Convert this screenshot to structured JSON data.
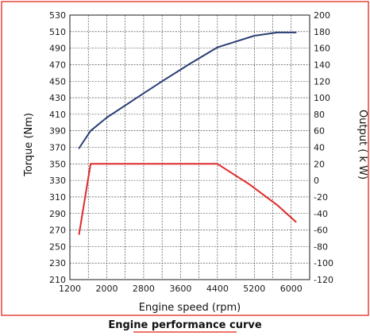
{
  "caption": "Engine performance curve",
  "colors": {
    "frame": "#e8433c",
    "caption_underline": "#e8433c",
    "grid": "#333333",
    "torque_line": "#2b3f74",
    "output_line": "#e02a2a"
  },
  "chart_data": {
    "type": "line",
    "xlabel": "Engine speed (rpm)",
    "ylabel_left": "Torque (Nm)",
    "ylabel_right": "Output ( k W)",
    "xlim": [
      1200,
      6400
    ],
    "ylim_left": [
      210,
      530
    ],
    "ylim_right": [
      -120,
      200
    ],
    "x_ticks": [
      1200,
      2000,
      2800,
      3600,
      4400,
      5200,
      6000
    ],
    "y_ticks_left": [
      210,
      230,
      250,
      270,
      290,
      310,
      330,
      350,
      370,
      390,
      410,
      430,
      450,
      470,
      490,
      510,
      530
    ],
    "y_ticks_right": [
      -120,
      -100,
      -80,
      -60,
      -40,
      -20,
      0,
      20,
      40,
      60,
      80,
      100,
      120,
      140,
      160,
      180,
      200
    ],
    "grid": true,
    "series": [
      {
        "name": "Torque (Nm)",
        "axis": "left",
        "color": "#2b3f74",
        "x": [
          1400,
          1650,
          2000,
          2600,
          3200,
          3800,
          4400,
          4800,
          5200,
          5700,
          6100
        ],
        "values": [
          369,
          390,
          406,
          428,
          450,
          471,
          491,
          498,
          505,
          509,
          509
        ]
      },
      {
        "name": "Output (kW)",
        "axis": "right",
        "color": "#e02a2a",
        "x": [
          1400,
          1650,
          4400,
          5100,
          5700,
          6100
        ],
        "values": [
          -65,
          20,
          20,
          -5,
          -30,
          -50
        ]
      }
    ]
  }
}
